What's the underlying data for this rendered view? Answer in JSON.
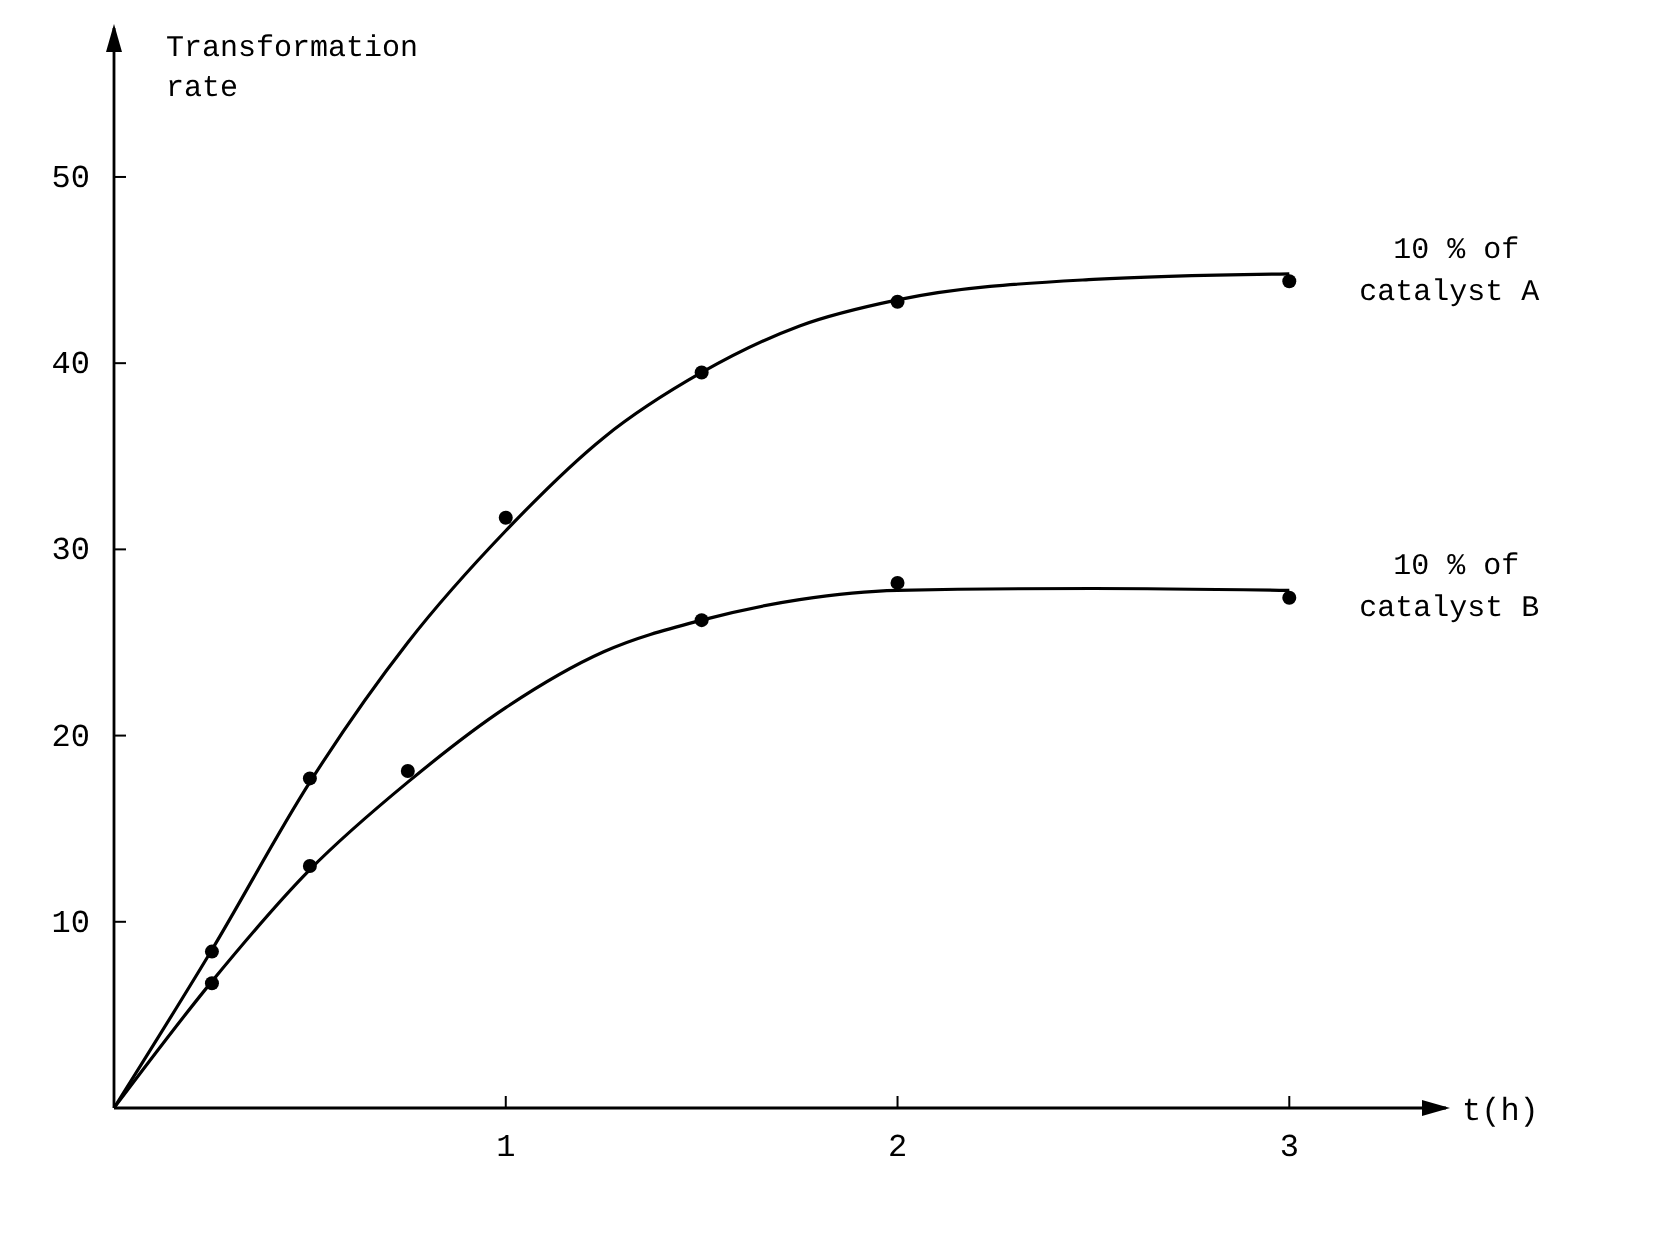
{
  "chart_data": {
    "type": "line",
    "ylabel": "Transformation rate",
    "xlabel": "t(h)",
    "xlim": [
      0,
      3.4
    ],
    "ylim": [
      0,
      58
    ],
    "xticks": [
      1,
      2,
      3
    ],
    "yticks": [
      10,
      20,
      30,
      40,
      50
    ],
    "grid": false,
    "series": [
      {
        "name": "10 % of catalyst A",
        "color": "#000000",
        "marker": "none",
        "x": [
          0,
          0.25,
          0.5,
          0.75,
          1,
          1.25,
          1.5,
          1.75,
          2,
          2.5,
          3
        ],
        "values": [
          0,
          8.5,
          17.5,
          25,
          31,
          36,
          39.5,
          42,
          43.4,
          44.5,
          44.8
        ]
      },
      {
        "name": "10 % of catalyst B",
        "color": "#000000",
        "marker": "none",
        "x": [
          0,
          0.25,
          0.5,
          0.75,
          1,
          1.25,
          1.5,
          1.75,
          2,
          2.5,
          3
        ],
        "values": [
          0,
          6.8,
          12.8,
          17.5,
          21.5,
          24.5,
          26.2,
          27.3,
          27.8,
          27.9,
          27.8
        ]
      },
      {
        "type": "scatter",
        "color": "#000000",
        "marker": "circle",
        "x": [
          0.25,
          0.5,
          1,
          1.5,
          2,
          3
        ],
        "values": [
          8.4,
          17.7,
          31.7,
          39.5,
          43.3,
          44.4
        ]
      },
      {
        "type": "scatter",
        "color": "#000000",
        "marker": "circle",
        "x": [
          0.25,
          0.5,
          0.75,
          1.5,
          2,
          3
        ],
        "values": [
          6.7,
          13.0,
          18.1,
          26.2,
          28.2,
          27.4
        ]
      }
    ]
  }
}
